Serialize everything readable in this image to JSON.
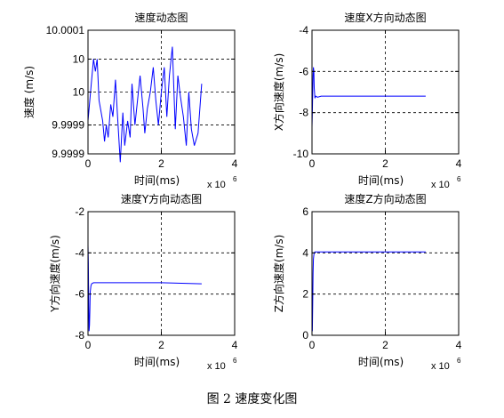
{
  "caption": "图 2  速度变化图",
  "chart_data": [
    {
      "type": "line",
      "title": "速度动态图",
      "xlabel": "时间(ms)",
      "ylabel": "速度 (m/s)",
      "x_exponent_base": "x 10",
      "x_exponent": "6",
      "xlim": [
        0,
        4
      ],
      "ylim": [
        9.99985,
        10.00015
      ],
      "xticks": [
        0,
        2,
        4
      ],
      "xtick_labels": [
        "0",
        "2",
        "4"
      ],
      "yticks": [
        10.00015,
        10.00008,
        10.0,
        9.99992,
        9.99985
      ],
      "ytick_labels": [
        "10.0001",
        "10",
        "10",
        "9.9999",
        "9.9999"
      ],
      "grid": true,
      "color": "#0000ff",
      "x": [
        0.0,
        0.1,
        0.15,
        0.2,
        0.25,
        0.3,
        0.4,
        0.45,
        0.5,
        0.55,
        0.62,
        0.68,
        0.75,
        0.8,
        0.88,
        0.95,
        1.0,
        1.08,
        1.15,
        1.2,
        1.28,
        1.35,
        1.42,
        1.5,
        1.55,
        1.62,
        1.7,
        1.78,
        1.85,
        1.92,
        2.0,
        2.08,
        2.15,
        2.22,
        2.3,
        2.38,
        2.45,
        2.52,
        2.6,
        2.68,
        2.75,
        2.82,
        2.9,
        3.0,
        3.1
      ],
      "y": [
        9.99993,
        10.00003,
        10.00008,
        10.00005,
        10.00008,
        9.99998,
        9.99993,
        9.99988,
        9.99992,
        9.99989,
        9.99997,
        9.99994,
        10.00003,
        9.99995,
        9.99983,
        9.99995,
        9.99987,
        9.99993,
        9.99989,
        10.00002,
        9.99992,
        9.99998,
        10.00004,
        9.99996,
        9.9999,
        9.99996,
        10.0,
        10.00006,
        9.99998,
        9.99992,
        10.0,
        10.00006,
        9.99994,
        10.00004,
        10.00011,
        9.99991,
        10.00004,
        9.99999,
        9.99994,
        9.99987,
        10.0,
        9.99991,
        9.99987,
        9.9999,
        10.00002
      ]
    },
    {
      "type": "line",
      "title": "速度X方向动态图",
      "xlabel": "时间(ms)",
      "ylabel": "X方向速度(m/s)",
      "x_exponent_base": "x 10",
      "x_exponent": "6",
      "xlim": [
        0,
        4
      ],
      "ylim": [
        -10,
        -4
      ],
      "xticks": [
        0,
        2,
        4
      ],
      "xtick_labels": [
        "0",
        "2",
        "4"
      ],
      "yticks": [
        -4,
        -6,
        -8,
        -10
      ],
      "ytick_labels": [
        "-4",
        "-6",
        "-8",
        "-10"
      ],
      "grid": true,
      "color": "#0000ff",
      "x": [
        0.0,
        0.01,
        0.02,
        0.03,
        0.04,
        0.05,
        0.06,
        0.08,
        0.1,
        0.15,
        0.25,
        1.0,
        2.0,
        3.1
      ],
      "y": [
        -8.7,
        -8.0,
        -7.0,
        -6.2,
        -5.8,
        -6.0,
        -6.8,
        -7.3,
        -7.2,
        -7.25,
        -7.2,
        -7.2,
        -7.2,
        -7.2
      ]
    },
    {
      "type": "line",
      "title": "速度Y方向动态图",
      "xlabel": "时间(ms)",
      "ylabel": "Y方向速度(m/s)",
      "x_exponent_base": "x 10",
      "x_exponent": "6",
      "xlim": [
        0,
        4
      ],
      "ylim": [
        -8,
        -2
      ],
      "xticks": [
        0,
        2,
        4
      ],
      "xtick_labels": [
        "0",
        "2",
        "4"
      ],
      "yticks": [
        -2,
        -4,
        -6,
        -8
      ],
      "ytick_labels": [
        "-2",
        "-4",
        "-6",
        "-8"
      ],
      "grid": true,
      "color": "#0000ff",
      "x": [
        0.0,
        0.01,
        0.02,
        0.03,
        0.04,
        0.05,
        0.06,
        0.08,
        0.1,
        0.15,
        0.3,
        1.0,
        2.0,
        3.1
      ],
      "y": [
        -3.6,
        -4.5,
        -6.5,
        -7.8,
        -7.5,
        -6.8,
        -5.9,
        -5.6,
        -5.5,
        -5.45,
        -5.45,
        -5.45,
        -5.45,
        -5.5
      ]
    },
    {
      "type": "line",
      "title": "速度Z方向动态图",
      "xlabel": "时间(ms)",
      "ylabel": "Z方向速度(m/s)",
      "x_exponent_base": "x 10",
      "x_exponent": "6",
      "xlim": [
        0,
        4
      ],
      "ylim": [
        0,
        6
      ],
      "xticks": [
        0,
        2,
        4
      ],
      "xtick_labels": [
        "0",
        "2",
        "4"
      ],
      "yticks": [
        6,
        4,
        2,
        0
      ],
      "ytick_labels": [
        "6",
        "4",
        "2",
        "0"
      ],
      "grid": true,
      "color": "#0000ff",
      "x": [
        0.0,
        0.01,
        0.02,
        0.03,
        0.04,
        0.05,
        0.06,
        0.08,
        0.1,
        0.2,
        1.0,
        2.0,
        3.1
      ],
      "y": [
        0.5,
        0.2,
        1.5,
        3.0,
        3.7,
        3.9,
        4.0,
        4.05,
        4.05,
        4.05,
        4.05,
        4.05,
        4.05
      ]
    }
  ]
}
